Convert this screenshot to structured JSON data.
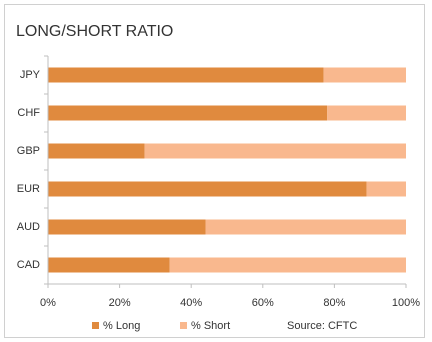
{
  "chart_data": {
    "type": "stacked-bar-horizontal",
    "title": "LONG/SHORT RATIO",
    "categories": [
      "JPY",
      "CHF",
      "GBP",
      "EUR",
      "AUD",
      "CAD"
    ],
    "series": [
      {
        "name": "% Long",
        "color": "#e08a3e",
        "values": [
          77,
          78,
          27,
          89,
          44,
          34
        ]
      },
      {
        "name": "% Short",
        "color": "#f9b88e",
        "values": [
          23,
          22,
          73,
          11,
          56,
          66
        ]
      }
    ],
    "xlim": [
      0,
      100
    ],
    "xticks": [
      {
        "value": 0,
        "label": "0%"
      },
      {
        "value": 20,
        "label": "20%"
      },
      {
        "value": 40,
        "label": "40%"
      },
      {
        "value": 60,
        "label": "60%"
      },
      {
        "value": 80,
        "label": "80%"
      },
      {
        "value": 100,
        "label": "100%"
      }
    ],
    "annotation": "Source: CFTC"
  }
}
